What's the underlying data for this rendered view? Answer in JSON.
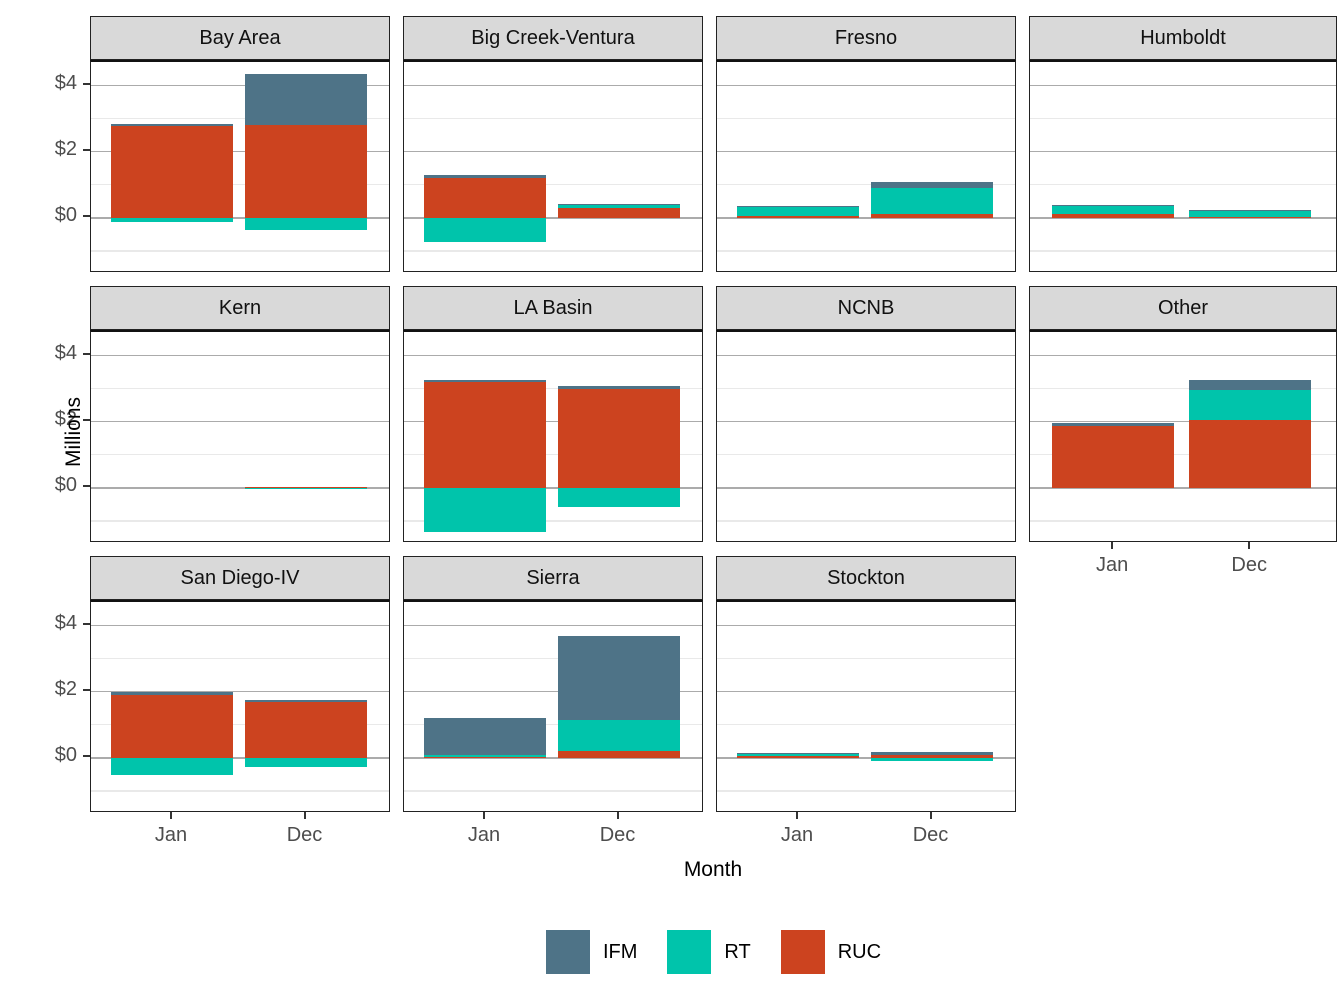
{
  "axes": {
    "x_title": "Month",
    "y_title": "Millions"
  },
  "legend": {
    "items": [
      {
        "label": "IFM",
        "color": "#4e7387"
      },
      {
        "label": "RT",
        "color": "#00c4ab"
      },
      {
        "label": "RUC",
        "color": "#cc431f"
      }
    ]
  },
  "chart_data": {
    "type": "bar",
    "variant": "stacked-faceted",
    "title": "",
    "xlabel": "Month",
    "ylabel": "Millions",
    "categories": [
      "Jan",
      "Dec"
    ],
    "series_names": [
      "IFM",
      "RT",
      "RUC"
    ],
    "stack_order_bottom_to_top": [
      "RUC",
      "RT",
      "IFM"
    ],
    "colors": {
      "IFM": "#4e7387",
      "RT": "#00c4ab",
      "RUC": "#cc431f"
    },
    "units": "millions of dollars",
    "ylim": [
      -1.7,
      4.72
    ],
    "yticks_major": [
      4,
      2,
      0
    ],
    "ytick_labels": [
      "$4",
      "$2",
      "$0"
    ],
    "yticks_minor": [
      3,
      1,
      -1
    ],
    "grid": true,
    "legend_position": "bottom",
    "facets": [
      {
        "title": "Bay Area",
        "row": 0,
        "col": 0,
        "show_x_axis": false,
        "values": {
          "Jan": {
            "IFM": 0.07,
            "RT": -0.12,
            "RUC": 2.78
          },
          "Dec": {
            "IFM": 1.55,
            "RT": -0.37,
            "RUC": 2.8
          }
        }
      },
      {
        "title": "Big Creek-Ventura",
        "row": 0,
        "col": 1,
        "show_x_axis": false,
        "values": {
          "Jan": {
            "IFM": 0.08,
            "RT": -0.72,
            "RUC": 1.22
          },
          "Dec": {
            "IFM": 0.02,
            "RT": 0.1,
            "RUC": 0.3
          }
        }
      },
      {
        "title": "Fresno",
        "row": 0,
        "col": 2,
        "show_x_axis": false,
        "values": {
          "Jan": {
            "IFM": 0.01,
            "RT": 0.31,
            "RUC": 0.05
          },
          "Dec": {
            "IFM": 0.18,
            "RT": 0.77,
            "RUC": 0.13
          }
        }
      },
      {
        "title": "Humboldt",
        "row": 0,
        "col": 3,
        "show_x_axis": false,
        "values": {
          "Jan": {
            "IFM": 0.01,
            "RT": 0.26,
            "RUC": 0.11
          },
          "Dec": {
            "IFM": 0.03,
            "RT": 0.18,
            "RUC": 0.04
          }
        }
      },
      {
        "title": "Kern",
        "row": 1,
        "col": 0,
        "show_x_axis": false,
        "values": {
          "Jan": {
            "IFM": 0,
            "RT": 0,
            "RUC": 0
          },
          "Dec": {
            "IFM": 0,
            "RT": -0.03,
            "RUC": 0.04
          }
        }
      },
      {
        "title": "LA Basin",
        "row": 1,
        "col": 1,
        "show_x_axis": false,
        "values": {
          "Jan": {
            "IFM": 0.06,
            "RT": -1.35,
            "RUC": 3.2
          },
          "Dec": {
            "IFM": 0.07,
            "RT": -0.57,
            "RUC": 3.0
          }
        }
      },
      {
        "title": "NCNB",
        "row": 1,
        "col": 2,
        "show_x_axis": false,
        "values": {
          "Jan": {
            "IFM": 0,
            "RT": 0,
            "RUC": 0
          },
          "Dec": {
            "IFM": 0,
            "RT": 0,
            "RUC": 0
          }
        }
      },
      {
        "title": "Other",
        "row": 1,
        "col": 3,
        "show_x_axis": true,
        "values": {
          "Jan": {
            "IFM": 0.07,
            "RT": 0,
            "RUC": 1.88
          },
          "Dec": {
            "IFM": 0.33,
            "RT": 0.9,
            "RUC": 2.05
          }
        }
      },
      {
        "title": "San Diego-IV",
        "row": 2,
        "col": 0,
        "show_x_axis": true,
        "values": {
          "Jan": {
            "IFM": 0.1,
            "RT": -0.52,
            "RUC": 1.9
          },
          "Dec": {
            "IFM": 0.04,
            "RT": -0.27,
            "RUC": 1.7
          }
        }
      },
      {
        "title": "Sierra",
        "row": 2,
        "col": 1,
        "show_x_axis": true,
        "values": {
          "Jan": {
            "IFM": 1.12,
            "RT": 0.08,
            "RUC": 0.02
          },
          "Dec": {
            "IFM": 2.55,
            "RT": 0.95,
            "RUC": 0.2
          }
        }
      },
      {
        "title": "Stockton",
        "row": 2,
        "col": 2,
        "show_x_axis": true,
        "values": {
          "Jan": {
            "IFM": 0.01,
            "RT": 0.08,
            "RUC": 0.06
          },
          "Dec": {
            "IFM": 0.08,
            "RT": -0.1,
            "RUC": 0.1
          }
        }
      }
    ]
  }
}
